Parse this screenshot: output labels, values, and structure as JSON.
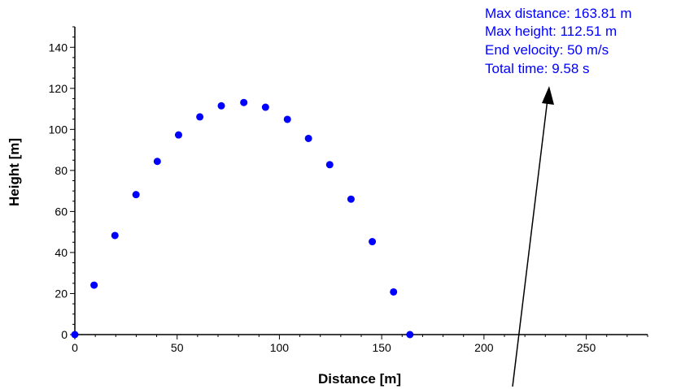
{
  "chart_data": {
    "type": "scatter",
    "xlabel": "Distance [m]",
    "ylabel": "Height [m]",
    "xlim": [
      0,
      280
    ],
    "ylim": [
      0,
      150
    ],
    "x_ticks": [
      0,
      50,
      100,
      150,
      200,
      250
    ],
    "y_ticks": [
      0,
      20,
      40,
      60,
      80,
      100,
      120,
      140
    ],
    "grid": false,
    "series": [
      {
        "color": "#0000ff",
        "x": [
          0,
          9.4,
          19.6,
          29.9,
          40.3,
          50.7,
          61.1,
          71.6,
          82.6,
          93.2,
          103.9,
          114.2,
          124.6,
          135,
          145.4,
          155.8,
          163.8
        ],
        "y": [
          0,
          24.1,
          48.3,
          68.2,
          84.4,
          97.3,
          106.1,
          111.5,
          113.1,
          110.8,
          104.9,
          95.6,
          82.8,
          66,
          45.3,
          20.8,
          0
        ]
      }
    ],
    "annotations": {
      "color": "#0000ff",
      "lines": [
        "Max distance: 163.81 m",
        "Max height: 112.51 m",
        "End velocity: 50 m/s",
        "Total time: 9.58 s"
      ]
    }
  }
}
